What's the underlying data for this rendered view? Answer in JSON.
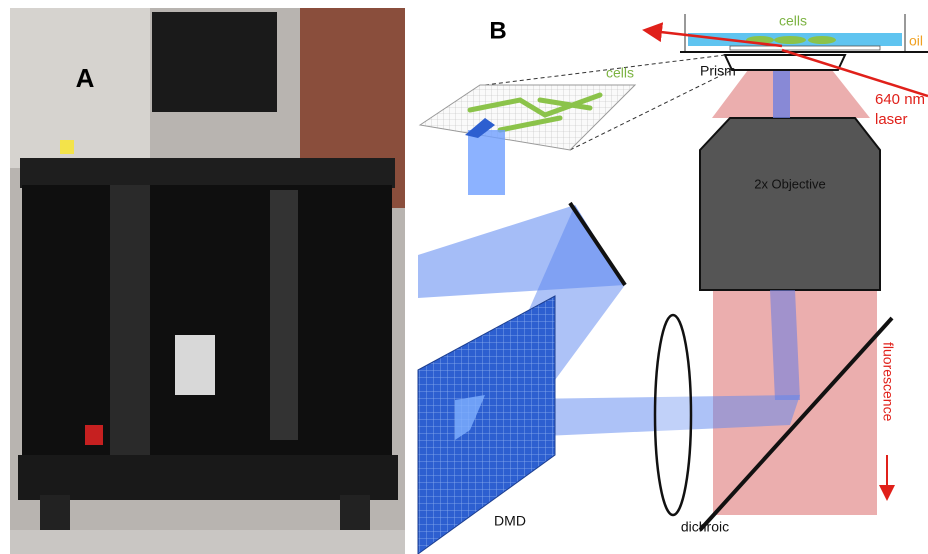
{
  "panel_a": {
    "label": "A"
  },
  "panel_b": {
    "label": "B",
    "cells_top": "cells",
    "oil": "oil",
    "prism": "Prism",
    "laser_wavelength": "640 nm",
    "laser": "laser",
    "objective": "2x Objective",
    "cells_inset": "cells",
    "fluorescence": "fluorescence",
    "dmd": "DMD",
    "dichroic": "dichroic"
  }
}
